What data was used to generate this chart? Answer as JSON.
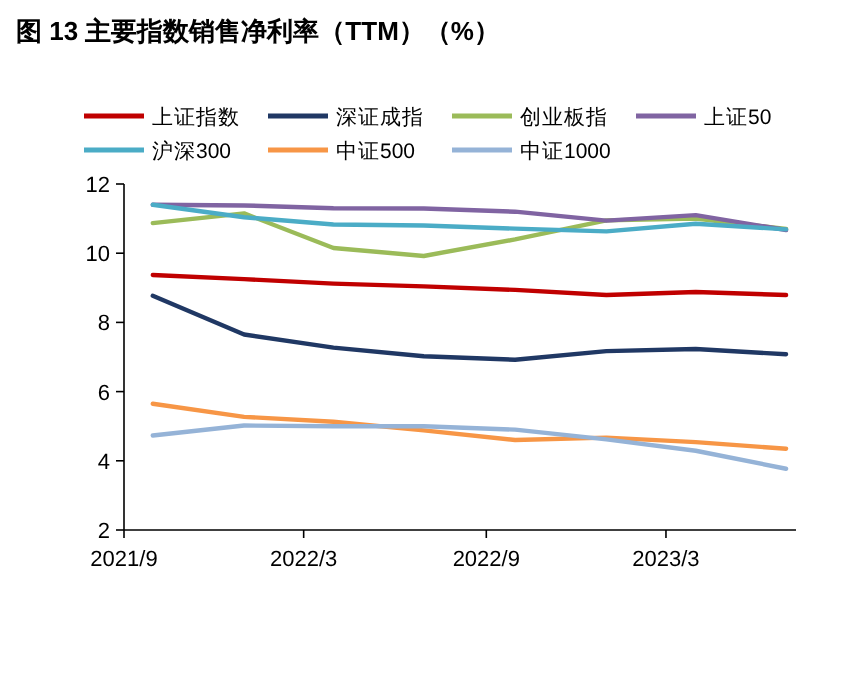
{
  "chart_data": {
    "type": "line",
    "title": "图 13  主要指数销售净利率（TTM）（%）",
    "x": [
      "2021-09-30",
      "2021-12-31",
      "2022-03-31",
      "2022-06-30",
      "2022-09-30",
      "2022-12-31",
      "2023-03-31",
      "2023-06-30"
    ],
    "series": [
      {
        "name": "上证指数",
        "color": "#c00000",
        "values": [
          9.37,
          9.25,
          9.12,
          9.04,
          8.94,
          8.79,
          8.88,
          8.79
        ]
      },
      {
        "name": "深证成指",
        "color": "#203864",
        "values": [
          8.77,
          7.65,
          7.27,
          7.02,
          6.92,
          7.17,
          7.23,
          7.08
        ]
      },
      {
        "name": "创业板指",
        "color": "#9bbb59",
        "values": [
          10.87,
          11.15,
          10.15,
          9.92,
          10.4,
          10.95,
          11.0,
          10.7
        ]
      },
      {
        "name": "上证50",
        "color": "#8064a2",
        "values": [
          11.4,
          11.38,
          11.3,
          11.29,
          11.2,
          10.94,
          11.1,
          10.67
        ]
      },
      {
        "name": "沪深300",
        "color": "#4bacc6",
        "values": [
          11.4,
          11.04,
          10.83,
          10.8,
          10.71,
          10.63,
          10.85,
          10.69
        ]
      },
      {
        "name": "中证500",
        "color": "#f79646",
        "values": [
          5.65,
          5.27,
          5.13,
          4.88,
          4.6,
          4.67,
          4.54,
          4.35
        ]
      },
      {
        "name": "中证1000",
        "color": "#95b3d7",
        "values": [
          4.73,
          5.02,
          5.0,
          5.0,
          4.9,
          4.62,
          4.29,
          3.77
        ]
      }
    ],
    "xlim": [
      "2021-09-01",
      "2023-07-10"
    ],
    "xticks": [
      {
        "value": "2021-09-01",
        "label": "2021/9"
      },
      {
        "value": "2022-03-01",
        "label": "2022/3"
      },
      {
        "value": "2022-09-01",
        "label": "2022/9"
      },
      {
        "value": "2023-03-01",
        "label": "2023/3"
      }
    ],
    "ylim": [
      2,
      12
    ],
    "yticks": [
      2,
      4,
      6,
      8,
      10,
      12
    ],
    "legend": "top",
    "grid": false,
    "marker": "none",
    "line_style": "solid"
  }
}
